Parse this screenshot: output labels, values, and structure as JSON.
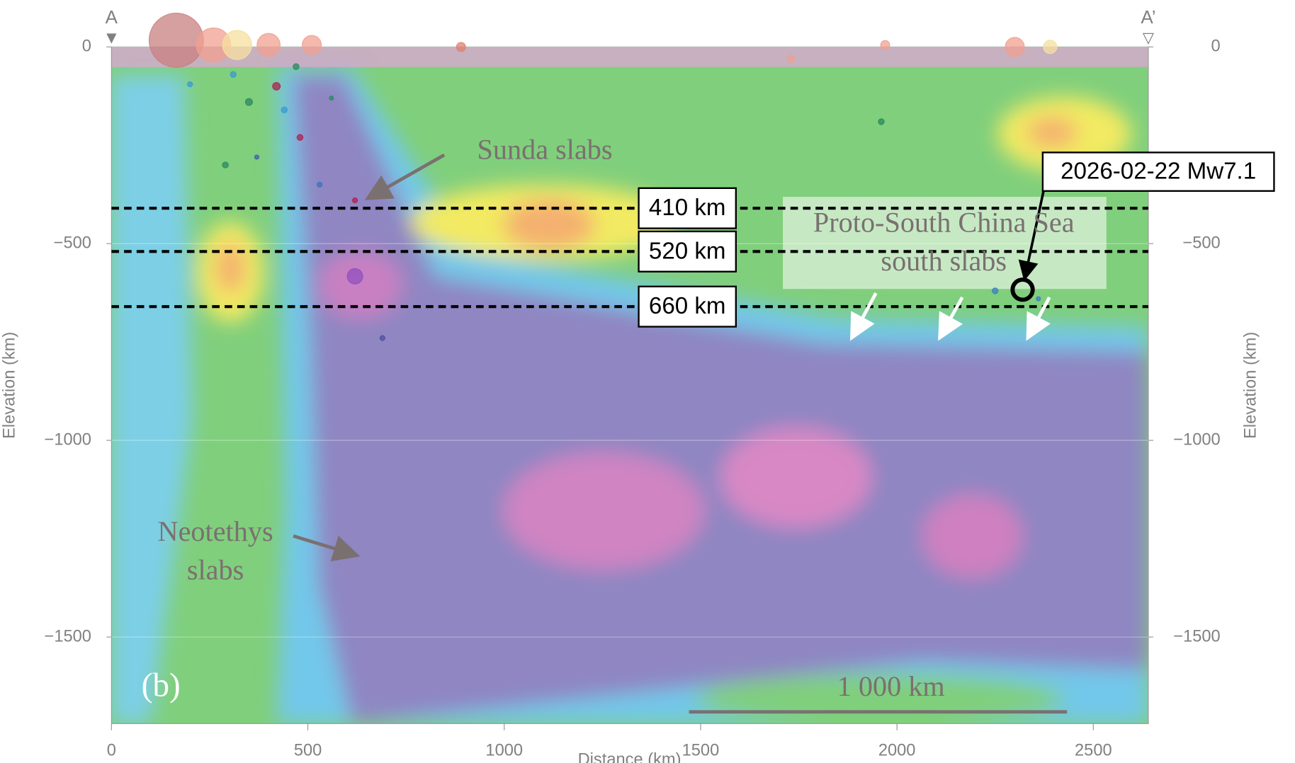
{
  "chart_data": {
    "type": "scatter",
    "x_label": "Distance (km)",
    "y_label": "Elevation (km)",
    "xlim": [
      0,
      2640
    ],
    "ylim": [
      -1720,
      0
    ],
    "xticks": [
      0,
      500,
      1000,
      1500,
      2000,
      2500
    ],
    "yticks": [
      0,
      {
        "value": -500,
        "label": "−500"
      },
      {
        "value": -1000,
        "label": "−1000"
      },
      {
        "value": -1500,
        "label": "−1500"
      }
    ],
    "profile_start": "A",
    "profile_end": "A’",
    "panel_label": "(b)",
    "scale_bar": "1 000 km",
    "depth_lines": [
      {
        "value": -410,
        "label": "410 km"
      },
      {
        "value": -520,
        "label": "520 km"
      },
      {
        "value": -660,
        "label": "660 km"
      }
    ],
    "annotations": {
      "sunda": "Sunda slabs",
      "neotethys": [
        "Neotethys",
        "slabs"
      ],
      "proto": [
        "Proto-South China Sea",
        "south slabs"
      ]
    },
    "events": {
      "x": [
        165,
        260,
        320,
        400,
        510,
        890,
        2300,
        2390,
        1970,
        1730,
        310,
        350,
        420,
        440,
        480,
        530,
        620,
        620,
        690,
        1960,
        2250,
        2360,
        470,
        290,
        200,
        560,
        370
      ],
      "y": [
        17,
        5,
        5,
        5,
        5,
        0,
        0,
        0,
        5,
        -30,
        -70,
        -140,
        -100,
        -160,
        -230,
        -350,
        -390,
        -583,
        -740,
        -190,
        -620,
        -640,
        -50,
        -300,
        -95,
        -130,
        -280
      ],
      "magnitudes": [
        8.5,
        7.5,
        7.2,
        6.8,
        6.5,
        5.5,
        6.5,
        6.0,
        5.5,
        5.2,
        5.0,
        5.2,
        5.3,
        5.0,
        5.0,
        4.8,
        4.8,
        6.2,
        4.8,
        5.0,
        5.0,
        4.6,
        5.0,
        5.0,
        4.8,
        4.5,
        4.6
      ],
      "colors": [
        "#c98080",
        "#f0a090",
        "#f5e0a0",
        "#f0a090",
        "#f0a090",
        "#e08070",
        "#f0a090",
        "#f5e0a0",
        "#f0a090",
        "#f0a090",
        "#3a9bd0",
        "#2a8a60",
        "#b02050",
        "#3a9bd0",
        "#b02050",
        "#4070c0",
        "#b02050",
        "#9050c0",
        "#5050a0",
        "#2a8a60",
        "#3a80c0",
        "#3a80c0",
        "#2a8a60",
        "#2a8a60",
        "#3a9bd0",
        "#2a8a60",
        "#4060b0"
      ]
    },
    "highlight": {
      "x": 2320,
      "y": -617,
      "label": "2026-02-22 Mw7.1"
    }
  }
}
